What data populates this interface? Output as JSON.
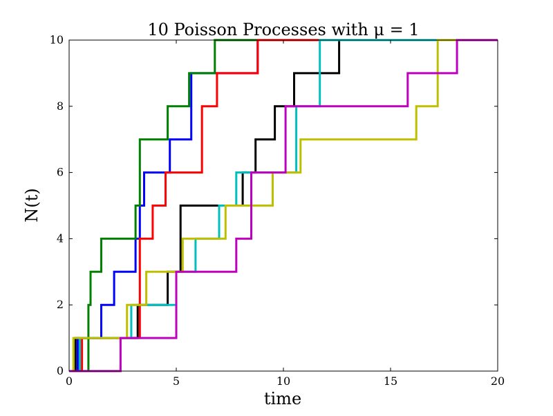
{
  "chart_data": {
    "type": "line",
    "step": "post",
    "title": "10 Poisson Processes with μ = 1",
    "xlabel": "time",
    "ylabel": "N(t)",
    "xlim": [
      0,
      20
    ],
    "ylim": [
      0,
      10
    ],
    "xticks": [
      0,
      5,
      10,
      15,
      20
    ],
    "yticks": [
      0,
      2,
      4,
      6,
      8,
      10
    ],
    "grid": false,
    "legend": "none",
    "series": [
      {
        "color": "#0000ff",
        "jump_times": [
          0.4,
          1.5,
          2.1,
          3.1,
          3.3,
          3.5,
          4.7,
          5.7,
          8.8
        ],
        "x": [
          0,
          0.4,
          1.5,
          2.1,
          3.1,
          3.3,
          3.5,
          4.7,
          5.7,
          8.8,
          20
        ],
        "y": [
          0,
          1,
          2,
          3,
          4,
          5,
          6,
          7,
          9,
          10,
          10
        ]
      },
      {
        "color": "#008000",
        "jump_times": [
          0.9,
          1,
          1.5,
          3.1,
          3.3,
          4.6,
          5.6,
          6.8,
          9.5
        ],
        "x": [
          0,
          0.9,
          1,
          1.5,
          3.1,
          3.3,
          4.6,
          5.6,
          6.8,
          9.5,
          20
        ],
        "y": [
          0,
          2,
          3,
          4,
          5,
          7,
          8,
          9,
          10,
          10,
          10
        ]
      },
      {
        "color": "#ff0000",
        "jump_times": [
          0.6,
          3.3,
          3.9,
          4.5,
          6.2,
          6.9,
          8.8,
          10.3,
          13.1
        ],
        "x": [
          0,
          0.6,
          3.3,
          3.9,
          4.5,
          6.2,
          6.9,
          8.8,
          10.3,
          13.1,
          20
        ],
        "y": [
          0,
          1,
          4,
          5,
          6,
          8,
          9,
          10,
          10,
          10,
          10
        ]
      },
      {
        "color": "#000000",
        "jump_times": [
          0.3,
          3.2,
          4.6,
          5.2,
          8.1,
          8.7,
          9.6,
          10.5,
          12.6
        ],
        "x": [
          0,
          0.3,
          3.2,
          4.6,
          5.2,
          8.1,
          8.7,
          9.6,
          10.5,
          12.6,
          20
        ],
        "y": [
          0,
          1,
          2,
          3,
          5,
          6,
          7,
          8,
          9,
          10,
          10
        ]
      },
      {
        "color": "#00bfbf",
        "jump_times": [
          0.5,
          2.9,
          5.0,
          5.9,
          7.0,
          7.8,
          10.6,
          11.7
        ],
        "x": [
          0,
          0.5,
          2.9,
          5.0,
          5.9,
          7.0,
          7.8,
          10.6,
          11.7,
          20
        ],
        "y": [
          0,
          1,
          2,
          3,
          4,
          5,
          6,
          8,
          10,
          10
        ]
      },
      {
        "color": "#bfbf00",
        "jump_times": [
          0.2,
          2.7,
          3.6,
          5.3,
          7.3,
          9.5,
          10.8,
          16.2,
          17.2
        ],
        "x": [
          0,
          0.2,
          2.7,
          3.6,
          5.3,
          7.3,
          9.5,
          10.8,
          16.2,
          17.2,
          20
        ],
        "y": [
          0,
          1,
          2,
          3,
          4,
          5,
          6,
          7,
          8,
          10,
          10
        ]
      },
      {
        "color": "#bf00bf",
        "jump_times": [
          2.4,
          5.0,
          7.8,
          8.5,
          10.1,
          15.8,
          18.1
        ],
        "x": [
          0,
          2.4,
          5.0,
          7.8,
          8.5,
          10.1,
          15.8,
          18.1,
          20
        ],
        "y": [
          0,
          1,
          3,
          4,
          6,
          8,
          9,
          10,
          10
        ]
      }
    ]
  }
}
